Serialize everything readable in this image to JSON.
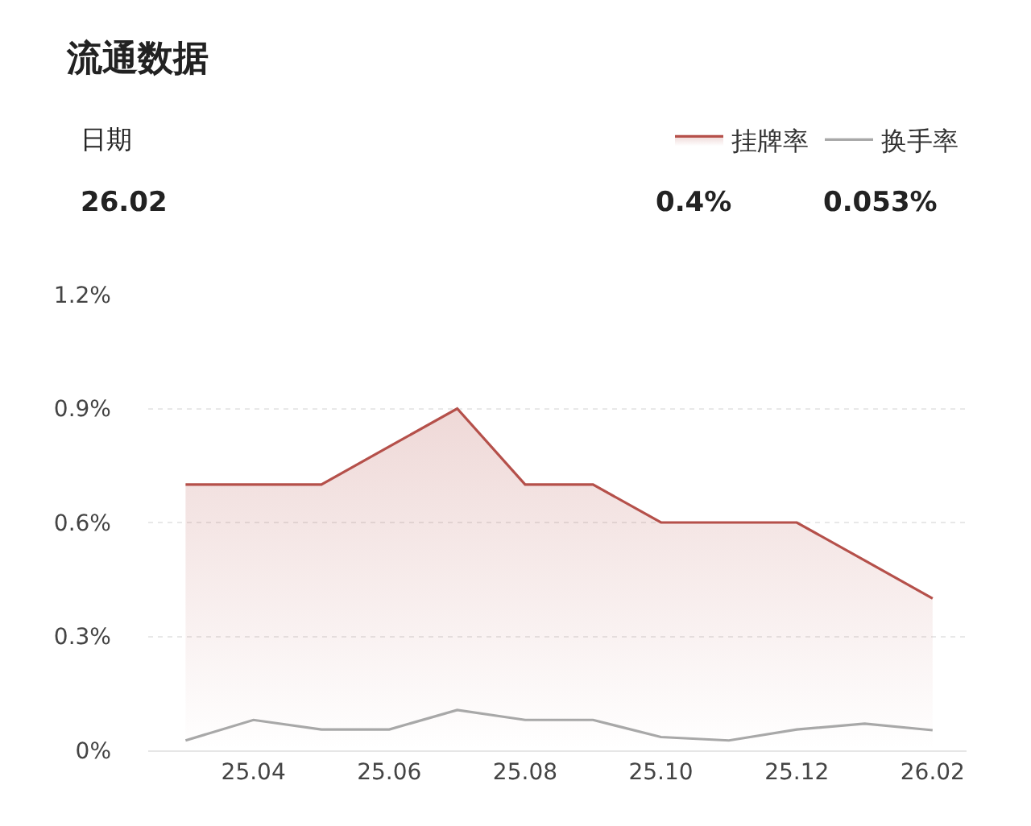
{
  "chart_data": {
    "type": "area",
    "title": "流通数据",
    "annotations": [
      "日期",
      "26.02",
      "0.4%",
      "0.053%"
    ],
    "categories": [
      null,
      "25.04",
      null,
      "25.06",
      null,
      "25.08",
      null,
      "25.10",
      null,
      "25.12",
      null,
      "26.02"
    ],
    "series": [
      {
        "name": "挂牌率",
        "color": "#b5504a",
        "values": [
          0.7,
          0.7,
          0.7,
          0.8,
          0.9,
          0.7,
          0.7,
          0.6,
          0.6,
          0.6,
          0.5,
          0.4
        ]
      },
      {
        "name": "换手率",
        "color": "#a8a8a8",
        "type": "line",
        "values": [
          0.026,
          0.08,
          0.055,
          0.055,
          0.106,
          0.08,
          0.08,
          0.035,
          0.026,
          0.055,
          0.07,
          0.053
        ]
      }
    ],
    "ylim": [
      0,
      1.2
    ],
    "yticks": [
      {
        "value": 0,
        "label": "0%"
      },
      {
        "value": 0.3,
        "label": "0.3%"
      },
      {
        "value": 0.6,
        "label": "0.6%"
      },
      {
        "value": 0.9,
        "label": "0.9%"
      },
      {
        "value": 1.2,
        "label": "1.2%"
      }
    ],
    "grid": "y",
    "legend": "top right",
    "marker": "none",
    "line_style": "solid"
  }
}
